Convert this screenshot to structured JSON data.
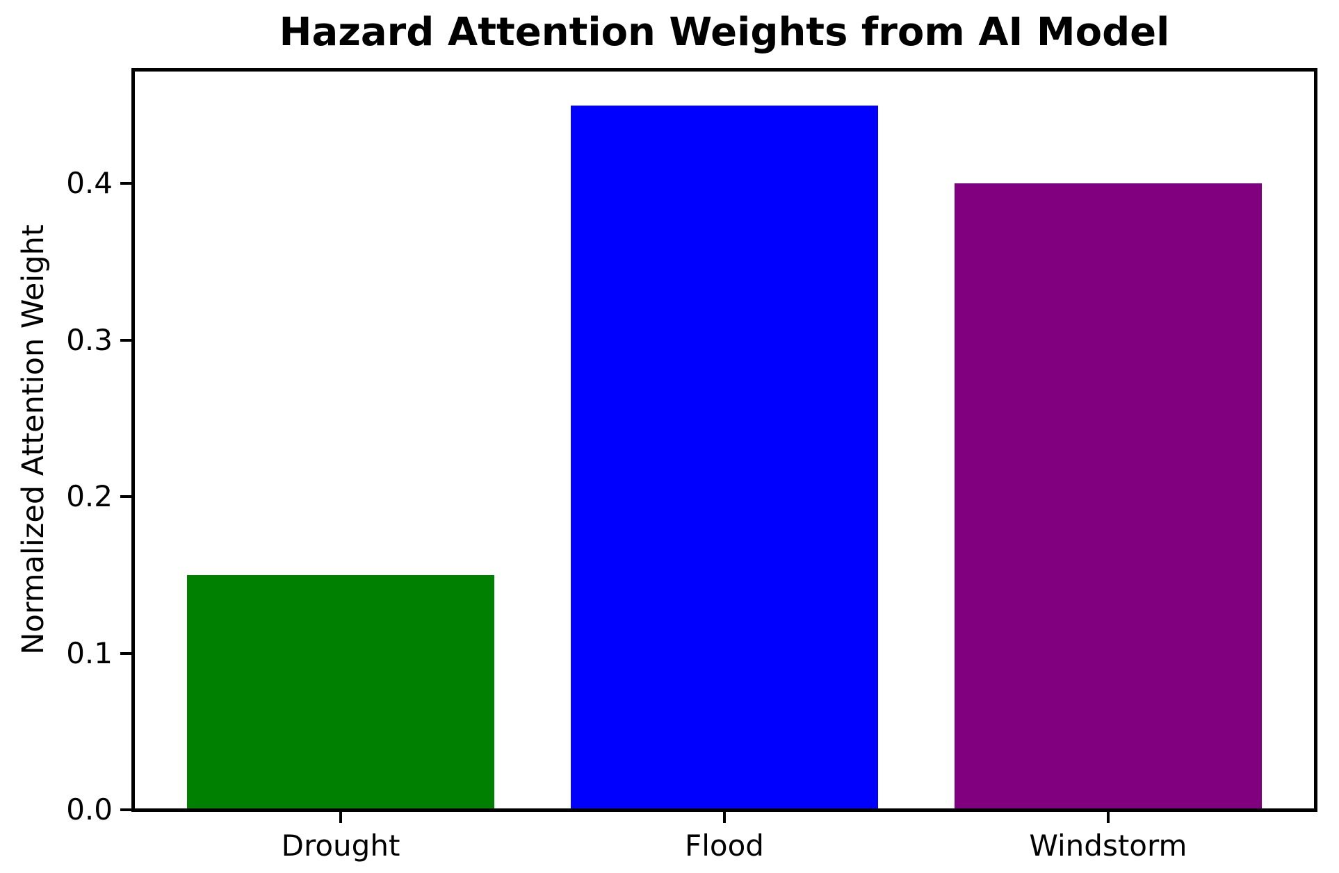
{
  "chart_data": {
    "type": "bar",
    "title": "Hazard Attention Weights from AI Model",
    "xlabel": "",
    "ylabel": "Normalized Attention Weight",
    "categories": [
      "Drought",
      "Flood",
      "Windstorm"
    ],
    "values": [
      0.15,
      0.45,
      0.4
    ],
    "bar_colors": [
      "#008000",
      "#0000ff",
      "#800080"
    ],
    "yticks": [
      0,
      0.1,
      0.2,
      0.3,
      0.4
    ],
    "ytick_labels": [
      "0.0",
      "0.1",
      "0.2",
      "0.3",
      "0.4"
    ],
    "ylim": [
      0,
      0.4725
    ],
    "xlim": [
      -0.54,
      2.54
    ],
    "bar_width": 0.8,
    "grid": false,
    "legend": "none",
    "background_color": "#ffffff",
    "spine_color": "#000000",
    "text_color": "#000000"
  }
}
